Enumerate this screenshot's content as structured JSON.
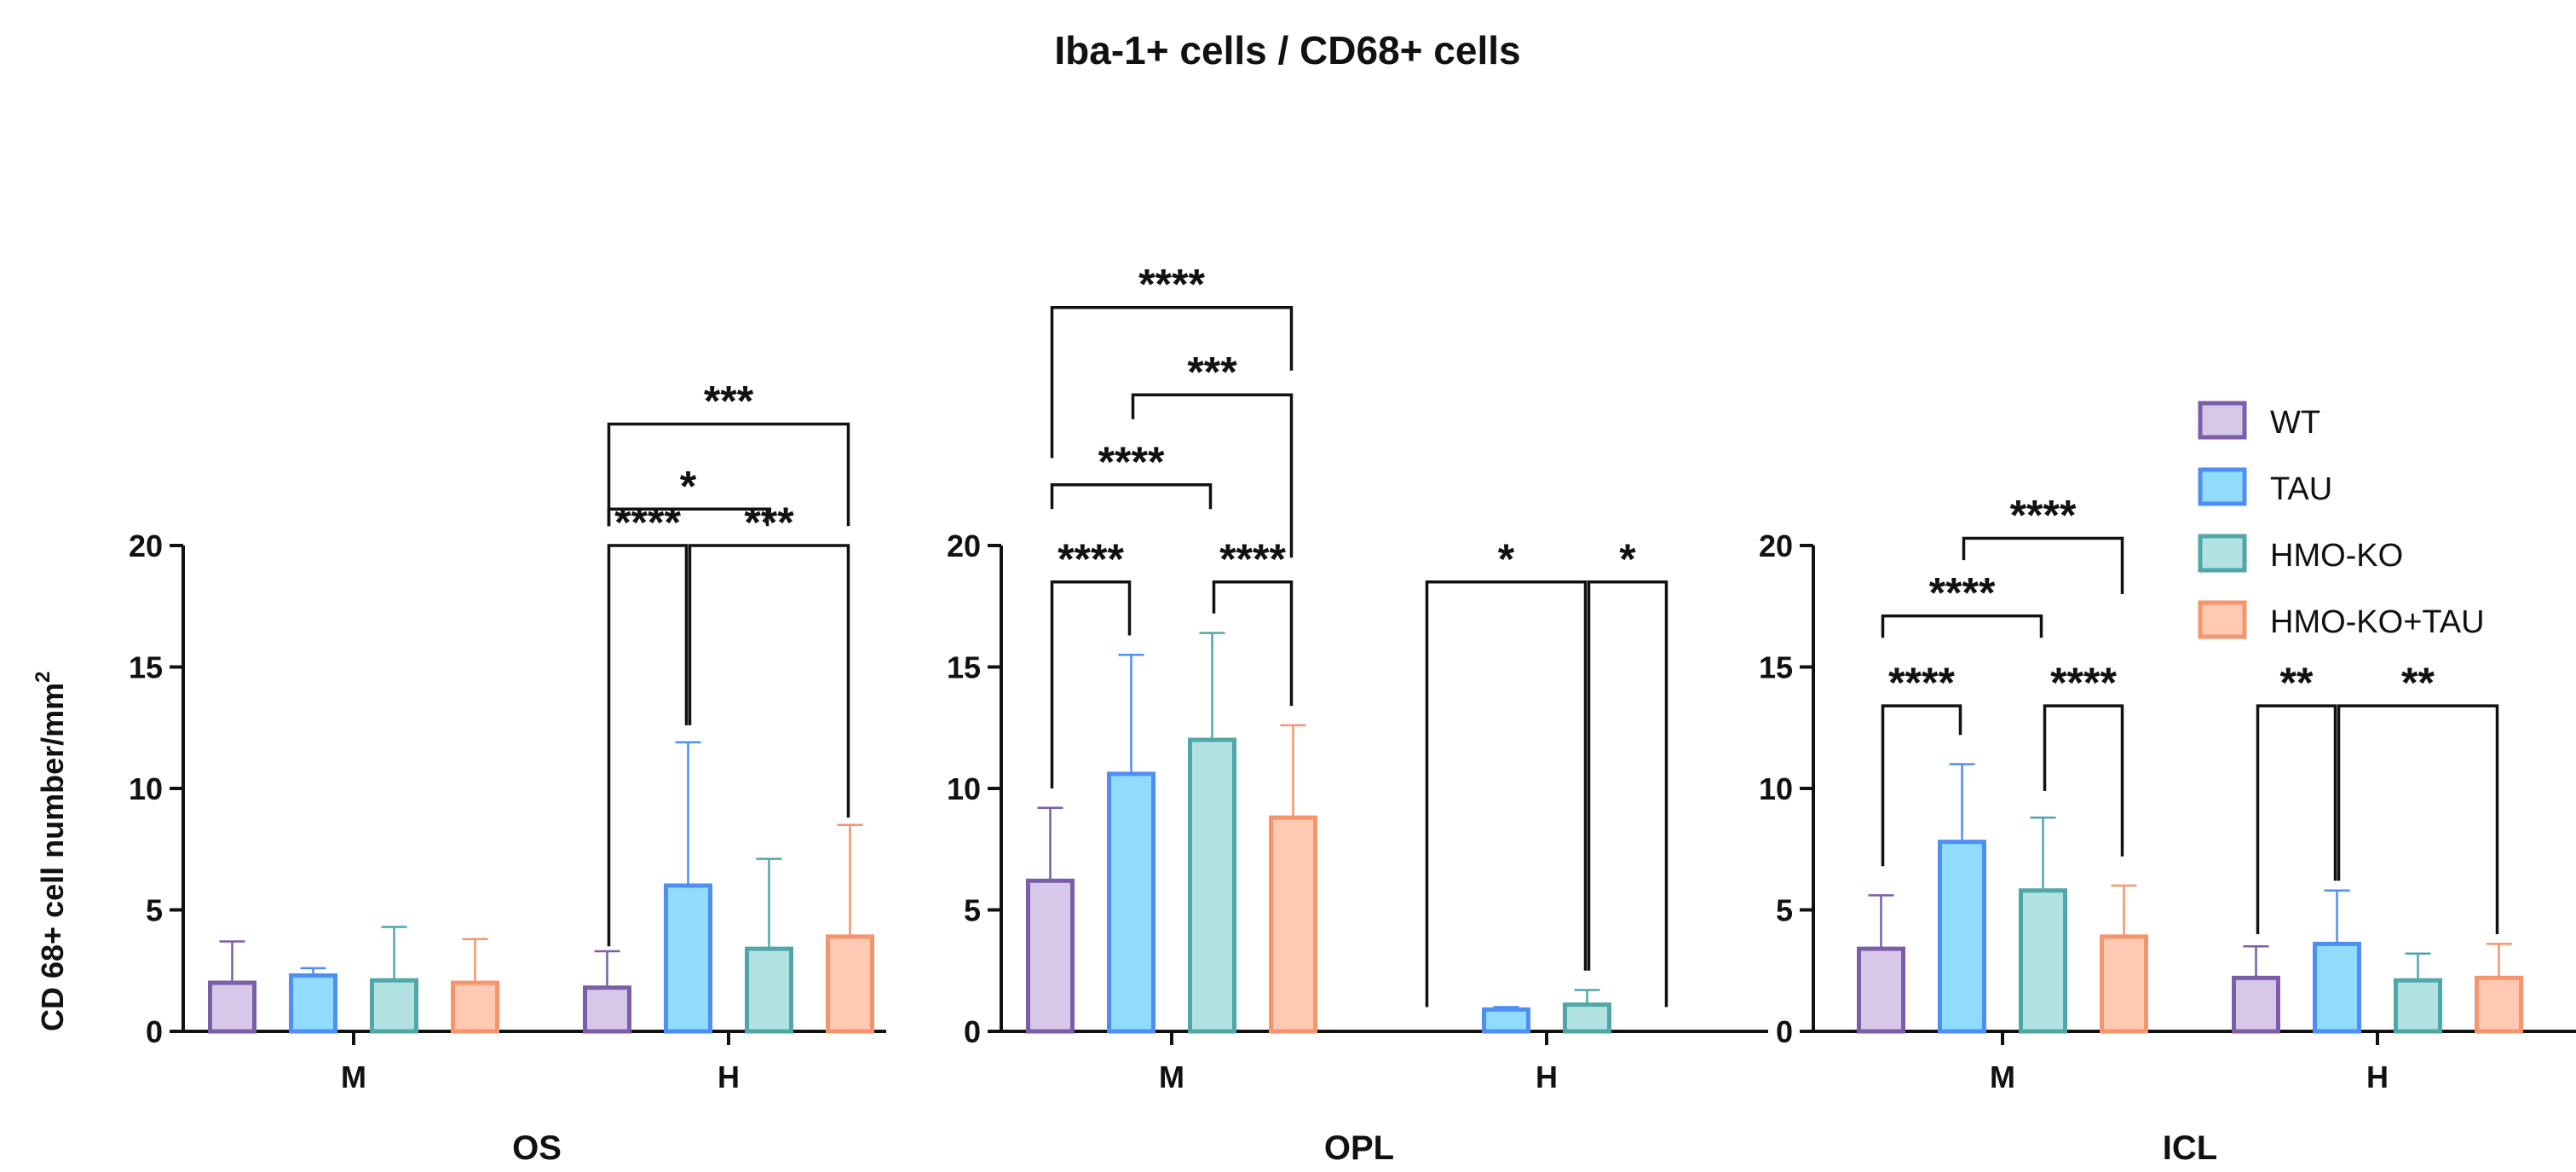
{
  "figure_title": "Iba-1+ cells / CD68+ cells",
  "y_axis_label": "CD 68+ cell number/mm",
  "y_axis_label_sup": "2",
  "legend": [
    {
      "name": "WT",
      "color": "#7b5ea7",
      "fill": "#d7c8ea"
    },
    {
      "name": "TAU",
      "color": "#4f8ef2",
      "fill": "#8fdcff"
    },
    {
      "name": "HMO-KO",
      "color": "#4fa7a7",
      "fill": "#b3e2e2"
    },
    {
      "name": "HMO-KO+TAU",
      "color": "#f5956b",
      "fill": "#ffc9b3"
    }
  ],
  "chart_data": [
    {
      "type": "bar",
      "title": "OS",
      "categories": [
        "M",
        "H"
      ],
      "ylim": [
        0,
        20
      ],
      "yticks": [
        0,
        5,
        10,
        15,
        20
      ],
      "series": [
        {
          "name": "WT",
          "values": [
            2.0,
            1.8
          ],
          "errors": [
            1.7,
            1.5
          ]
        },
        {
          "name": "TAU",
          "values": [
            2.3,
            6.0
          ],
          "errors": [
            0.3,
            5.9
          ]
        },
        {
          "name": "HMO-KO",
          "values": [
            2.1,
            3.4
          ],
          "errors": [
            2.2,
            3.7
          ]
        },
        {
          "name": "HMO-KO+TAU",
          "values": [
            2.0,
            3.9
          ],
          "errors": [
            1.8,
            4.6
          ]
        }
      ],
      "significance": [
        {
          "cat": "H",
          "from": 0,
          "to": 1,
          "label": "****",
          "level": 20.0,
          "left_end": 3.5,
          "right_end": 12.6
        },
        {
          "cat": "H",
          "from": 1,
          "to": 3,
          "label": "***",
          "level": 20.0,
          "left_end": 12.6,
          "right_end": 8.8
        },
        {
          "cat": "H",
          "from": 0,
          "to": 2,
          "label": "*",
          "level": 21.5,
          "left_end": 20.8,
          "right_end": 20.8
        },
        {
          "cat": "H",
          "from": 0,
          "to": 3,
          "label": "***",
          "level": 25.0,
          "left_end": 20.8,
          "right_end": 20.8
        }
      ]
    },
    {
      "type": "bar",
      "title": "OPL",
      "categories": [
        "M",
        "H"
      ],
      "ylim": [
        0,
        20
      ],
      "yticks": [
        0,
        5,
        10,
        15,
        20
      ],
      "series": [
        {
          "name": "WT",
          "values": [
            6.2,
            0.0
          ],
          "errors": [
            3.0,
            0.0
          ]
        },
        {
          "name": "TAU",
          "values": [
            10.6,
            0.9
          ],
          "errors": [
            4.9,
            0.1
          ]
        },
        {
          "name": "HMO-KO",
          "values": [
            12.0,
            1.1
          ],
          "errors": [
            4.4,
            0.6
          ]
        },
        {
          "name": "HMO-KO+TAU",
          "values": [
            8.8,
            0.0
          ],
          "errors": [
            3.8,
            0.0
          ]
        }
      ],
      "significance": [
        {
          "cat": "M",
          "from": 0,
          "to": 1,
          "label": "****",
          "level": 18.5,
          "left_end": 10.0,
          "right_end": 16.3
        },
        {
          "cat": "M",
          "from": 2,
          "to": 3,
          "label": "****",
          "level": 18.5,
          "left_end": 17.2,
          "right_end": 13.4
        },
        {
          "cat": "M",
          "from": 0,
          "to": 2,
          "label": "****",
          "level": 22.5,
          "left_end": 21.5,
          "right_end": 21.5
        },
        {
          "cat": "M",
          "from": 1,
          "to": 3,
          "label": "***",
          "level": 26.2,
          "left_end": 25.2,
          "right_end": 19.5
        },
        {
          "cat": "M",
          "from": 0,
          "to": 3,
          "label": "****",
          "level": 29.8,
          "left_end": 23.6,
          "right_end": 27.2
        },
        {
          "cat": "H",
          "from": 0,
          "to": 2,
          "label": "*",
          "level": 18.5,
          "left_end": 1.0,
          "right_end": 2.5
        },
        {
          "cat": "H",
          "from": 2,
          "to": 3,
          "label": "*",
          "level": 18.5,
          "left_end": 2.5,
          "right_end": 1.0
        }
      ]
    },
    {
      "type": "bar",
      "title": "ICL",
      "categories": [
        "M",
        "H"
      ],
      "ylim": [
        0,
        20
      ],
      "yticks": [
        0,
        5,
        10,
        15,
        20
      ],
      "series": [
        {
          "name": "WT",
          "values": [
            3.4,
            2.2
          ],
          "errors": [
            2.2,
            1.3
          ]
        },
        {
          "name": "TAU",
          "values": [
            7.8,
            3.6
          ],
          "errors": [
            3.2,
            2.2
          ]
        },
        {
          "name": "HMO-KO",
          "values": [
            5.8,
            2.1
          ],
          "errors": [
            3.0,
            1.1
          ]
        },
        {
          "name": "HMO-KO+TAU",
          "values": [
            3.9,
            2.2
          ],
          "errors": [
            2.1,
            1.4
          ]
        }
      ],
      "significance": [
        {
          "cat": "M",
          "from": 0,
          "to": 1,
          "label": "****",
          "level": 13.4,
          "left_end": 6.8,
          "right_end": 12.2
        },
        {
          "cat": "M",
          "from": 2,
          "to": 3,
          "label": "****",
          "level": 13.4,
          "left_end": 9.9,
          "right_end": 7.2
        },
        {
          "cat": "M",
          "from": 0,
          "to": 2,
          "label": "****",
          "level": 17.1,
          "left_end": 16.2,
          "right_end": 16.2
        },
        {
          "cat": "M",
          "from": 1,
          "to": 3,
          "label": "****",
          "level": 20.3,
          "left_end": 19.4,
          "right_end": 18.0
        },
        {
          "cat": "H",
          "from": 0,
          "to": 1,
          "label": "**",
          "level": 13.4,
          "left_end": 4.0,
          "right_end": 6.2
        },
        {
          "cat": "H",
          "from": 1,
          "to": 3,
          "label": "**",
          "level": 13.4,
          "left_end": 6.2,
          "right_end": 4.0
        }
      ]
    }
  ]
}
